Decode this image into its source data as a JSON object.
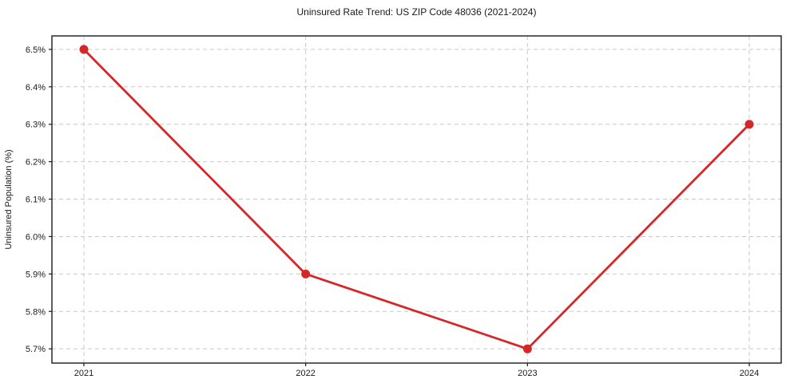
{
  "chart_data": {
    "type": "line",
    "title": "Uninsured Rate Trend: US ZIP Code 48036 (2021-2024)",
    "xlabel": "",
    "ylabel": "Uninsured Population (%)",
    "x": [
      2021,
      2022,
      2023,
      2024
    ],
    "x_tick_labels": [
      "2021",
      "2022",
      "2023",
      "2024"
    ],
    "series": [
      {
        "name": "Uninsured Rate",
        "values": [
          6.5,
          5.9,
          5.7,
          6.3
        ]
      }
    ],
    "y_ticks": [
      5.7,
      5.8,
      5.9,
      6.0,
      6.1,
      6.2,
      6.3,
      6.4,
      6.5
    ],
    "y_tick_labels": [
      "5.7%",
      "5.8%",
      "5.9%",
      "6.0%",
      "6.1%",
      "6.2%",
      "6.3%",
      "6.4%",
      "6.5%"
    ],
    "ylim": [
      5.662,
      6.536
    ],
    "xlim": [
      2020.856,
      2024.144
    ],
    "line_color": "#d62728",
    "marker": "circle",
    "grid": true,
    "grid_style": "dashed",
    "grid_color": "#c9c9c9",
    "spine_color": "#1a1a1a",
    "background": "#ffffff",
    "legend": "none"
  }
}
